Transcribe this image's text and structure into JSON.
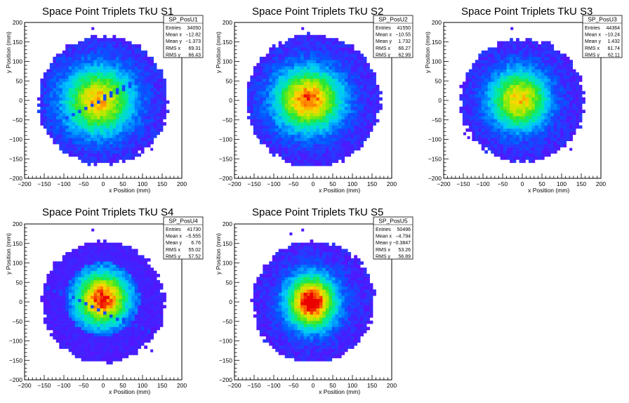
{
  "chart_data": [
    {
      "type": "heatmap",
      "title": "Space Point Triplets TkU S1",
      "xlabel": "x Position (mm)",
      "ylabel": "y Position (mm)",
      "xlim": [
        -200,
        200
      ],
      "ylim": [
        -200,
        200
      ],
      "xticks": [
        "-200",
        "-150",
        "-100",
        "-50",
        "0",
        "50",
        "100",
        "150",
        "200"
      ],
      "yticks": [
        "-200",
        "-150",
        "-100",
        "-50",
        "0",
        "50",
        "100",
        "150",
        "200"
      ],
      "stats": {
        "name": "SP_PosU1",
        "rows": [
          {
            "label": "Entries",
            "value": "34050"
          },
          {
            "label": "Mean x",
            "value": "-12.82"
          },
          {
            "label": "Mean y",
            "value": "-1.373"
          },
          {
            "label": "RMS x",
            "value": "69.31"
          },
          {
            "label": "RMS y",
            "value": "66.43"
          }
        ]
      }
    },
    {
      "type": "heatmap",
      "title": "Space Point Triplets TkU S2",
      "xlabel": "x Position (mm)",
      "ylabel": "y Position (mm)",
      "xlim": [
        -200,
        200
      ],
      "ylim": [
        -200,
        200
      ],
      "xticks": [
        "-200",
        "-150",
        "-100",
        "-50",
        "0",
        "50",
        "100",
        "150",
        "200"
      ],
      "yticks": [
        "-200",
        "-150",
        "-100",
        "-50",
        "0",
        "50",
        "100",
        "150",
        "200"
      ],
      "stats": {
        "name": "SP_PosU2",
        "rows": [
          {
            "label": "Entries",
            "value": "41550"
          },
          {
            "label": "Mean x",
            "value": "-10.55"
          },
          {
            "label": "Mean y",
            "value": "1.732"
          },
          {
            "label": "RMS x",
            "value": "66.27"
          },
          {
            "label": "RMS y",
            "value": "62.99"
          }
        ]
      }
    },
    {
      "type": "heatmap",
      "title": "Space Point Triplets TkU S3",
      "xlabel": "x Position (mm)",
      "ylabel": "y Position (mm)",
      "xlim": [
        -200,
        200
      ],
      "ylim": [
        -200,
        200
      ],
      "xticks": [
        "-200",
        "-150",
        "-100",
        "-50",
        "0",
        "50",
        "100",
        "150",
        "200"
      ],
      "yticks": [
        "-200",
        "-150",
        "-100",
        "-50",
        "0",
        "50",
        "100",
        "150",
        "200"
      ],
      "stats": {
        "name": "SP_PosU3",
        "rows": [
          {
            "label": "Entries",
            "value": "44364"
          },
          {
            "label": "Mean x",
            "value": "-10.24"
          },
          {
            "label": "Mean y",
            "value": "1.432"
          },
          {
            "label": "RMS x",
            "value": "61.74"
          },
          {
            "label": "RMS y",
            "value": "62.11"
          }
        ]
      }
    },
    {
      "type": "heatmap",
      "title": "Space Point Triplets TkU S4",
      "xlabel": "x Position (mm)",
      "ylabel": "y Position (mm)",
      "xlim": [
        -200,
        200
      ],
      "ylim": [
        -200,
        200
      ],
      "xticks": [
        "-200",
        "-150",
        "-100",
        "-50",
        "0",
        "50",
        "100",
        "150",
        "200"
      ],
      "yticks": [
        "-200",
        "-150",
        "-100",
        "-50",
        "0",
        "50",
        "100",
        "150",
        "200"
      ],
      "stats": {
        "name": "SP_PosU4",
        "rows": [
          {
            "label": "Entries",
            "value": "41730"
          },
          {
            "label": "Mean x",
            "value": "-5.555"
          },
          {
            "label": "Mean y",
            "value": "6.76"
          },
          {
            "label": "RMS x",
            "value": "55.02"
          },
          {
            "label": "RMS y",
            "value": "57.52"
          }
        ]
      }
    },
    {
      "type": "heatmap",
      "title": "Space Point Triplets TkU S5",
      "xlabel": "x Position (mm)",
      "ylabel": "y Position (mm)",
      "xlim": [
        -200,
        200
      ],
      "ylim": [
        -200,
        200
      ],
      "xticks": [
        "-200",
        "-150",
        "-100",
        "-50",
        "0",
        "50",
        "100",
        "150",
        "200"
      ],
      "yticks": [
        "-200",
        "-150",
        "-100",
        "-50",
        "0",
        "50",
        "100",
        "150",
        "200"
      ],
      "stats": {
        "name": "SP_PosU5",
        "rows": [
          {
            "label": "Entries",
            "value": "50496"
          },
          {
            "label": "Mean x",
            "value": "-4.794"
          },
          {
            "label": "Mean y",
            "value": "-0.3847"
          },
          {
            "label": "RMS x",
            "value": "53.26"
          },
          {
            "label": "RMS y",
            "value": "56.89"
          }
        ]
      }
    }
  ]
}
